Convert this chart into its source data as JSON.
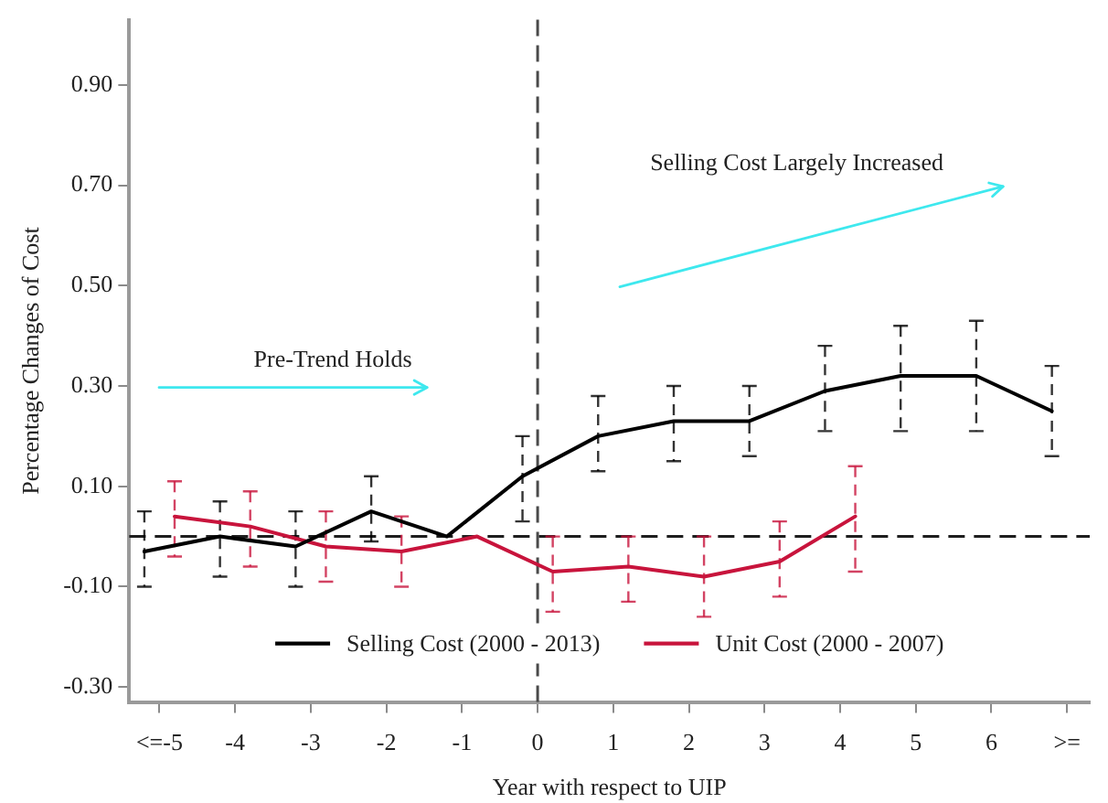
{
  "chart_data": {
    "type": "line",
    "xlabel": "Year with respect to UIP",
    "ylabel": "Percentage Changes of Cost",
    "annotations": [
      "Pre-Trend Holds",
      "Selling Cost Largely Increased"
    ],
    "series": [
      {
        "name": "Selling Cost (2000 - 2013)",
        "color": "#000000",
        "x": [
          -5.2,
          -4.2,
          -3.2,
          -2.2,
          -1.2,
          -0.2,
          0.8,
          1.8,
          2.8,
          3.8,
          4.8,
          5.8,
          6.8
        ],
        "values": [
          -0.03,
          0.0,
          -0.02,
          0.05,
          0.0,
          0.12,
          0.2,
          0.23,
          0.23,
          0.29,
          0.32,
          0.32,
          0.25
        ],
        "errors": [
          [
            -0.1,
            0.05
          ],
          [
            -0.08,
            0.07
          ],
          [
            -0.1,
            0.05
          ],
          [
            -0.01,
            0.12
          ],
          null,
          [
            0.03,
            0.2
          ],
          [
            0.13,
            0.28
          ],
          [
            0.15,
            0.3
          ],
          [
            0.16,
            0.3
          ],
          [
            0.21,
            0.38
          ],
          [
            0.21,
            0.42
          ],
          [
            0.21,
            0.43
          ],
          [
            0.16,
            0.34
          ]
        ]
      },
      {
        "name": "Unit Cost (2000 - 2007)",
        "color": "#c8143c",
        "x": [
          -4.8,
          -3.8,
          -2.8,
          -1.8,
          -0.8,
          0.2,
          1.2,
          2.2,
          3.2,
          4.2
        ],
        "values": [
          0.04,
          0.02,
          -0.02,
          -0.03,
          0.0,
          -0.07,
          -0.06,
          -0.08,
          -0.05,
          0.04
        ],
        "errors": [
          [
            -0.04,
            0.11
          ],
          [
            -0.06,
            0.09
          ],
          [
            -0.09,
            0.05
          ],
          [
            -0.1,
            0.04
          ],
          null,
          [
            -0.15,
            0.0
          ],
          [
            -0.13,
            0.0
          ],
          [
            -0.16,
            0.0
          ],
          [
            -0.12,
            0.03
          ],
          [
            -0.07,
            0.14
          ]
        ]
      }
    ],
    "xlim": [
      -5.4,
      7.3
    ],
    "ylim": [
      -0.33,
      1.03
    ],
    "xticks": [
      {
        "value": -5,
        "label": "<=-5"
      },
      -4,
      -3,
      -2,
      -1,
      0,
      1,
      2,
      3,
      4,
      5,
      6,
      {
        "value": 7,
        "label": ">="
      }
    ],
    "yticks": [
      {
        "value": -0.3,
        "label": "-0.30"
      },
      {
        "value": -0.1,
        "label": "-0.10"
      },
      {
        "value": 0.1,
        "label": "0.10"
      },
      {
        "value": 0.3,
        "label": "0.30"
      },
      {
        "value": 0.5,
        "label": "0.50"
      },
      {
        "value": 0.7,
        "label": "0.70"
      },
      {
        "value": 0.9,
        "label": "0.90"
      }
    ],
    "ref_lines": [
      {
        "axis": "y",
        "value": 0,
        "color": "#1e1e1e",
        "line_style": "dashed"
      },
      {
        "axis": "x",
        "value": 0,
        "color": "#4a4a4a",
        "line_style": "dashed"
      }
    ],
    "legend": "bottom",
    "line_style": "solid"
  }
}
